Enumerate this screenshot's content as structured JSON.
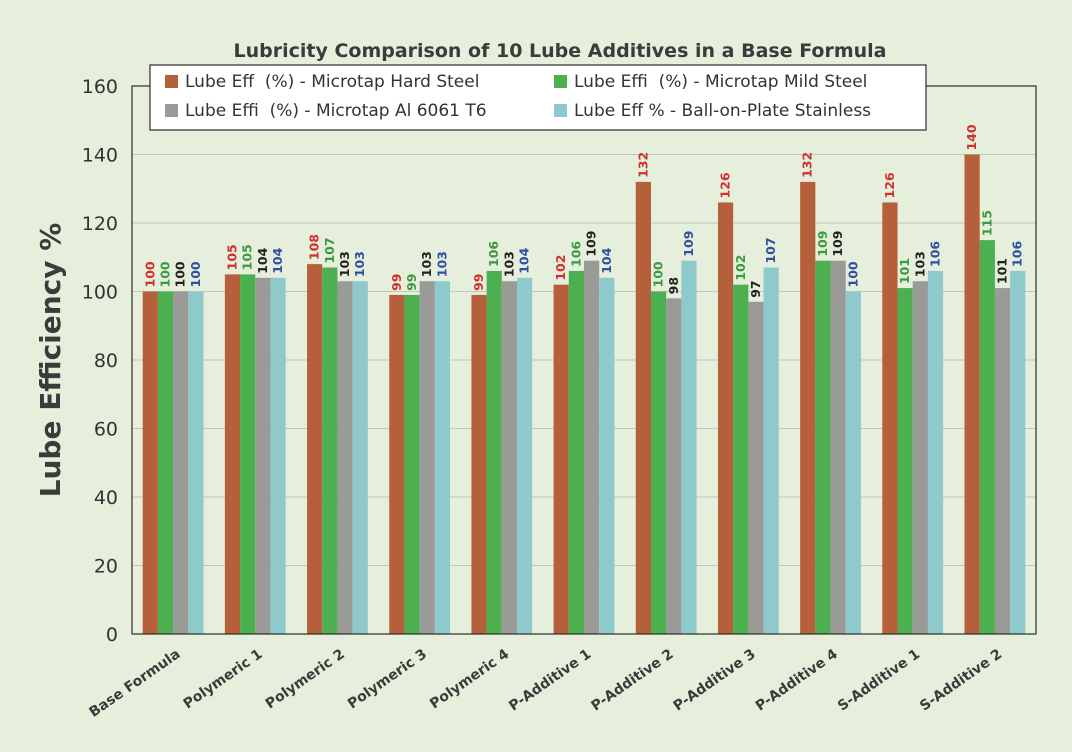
{
  "chart_data": {
    "type": "bar",
    "title": "Lubricity Comparison of 10 Lube Additives in a Base Formula",
    "xlabel": "",
    "ylabel": "Lube Efficiency %",
    "ylim": [
      0,
      160
    ],
    "yticks": [
      0,
      20,
      40,
      60,
      80,
      100,
      120,
      140,
      160
    ],
    "grid": true,
    "legend_position": "top",
    "categories": [
      "Base Formula",
      "Polymeric 1",
      "Polymeric 2",
      "Polymeric 3",
      "Polymeric 4",
      "P-Additive 1",
      "P-Additive 2",
      "P-Additive 3",
      "P-Additive 4",
      "S-Additive 1",
      "S-Additive 2"
    ],
    "series": [
      {
        "name": "Lube Eff  (%) - Microtap Hard Steel",
        "color": "#b5603a",
        "label_color": "#d0312d",
        "values": [
          100,
          105,
          108,
          99,
          99,
          102,
          132,
          126,
          132,
          126,
          140
        ],
        "labels": [
          "100",
          "105",
          "108",
          "99",
          "99",
          "102",
          "132",
          "126",
          "132",
          "126",
          "140"
        ]
      },
      {
        "name": "Lube Effi  (%) - Microtap Mild Steel",
        "color": "#4caf50",
        "label_color": "#3a9a3f",
        "values": [
          100,
          105,
          107,
          99,
          106,
          106,
          100,
          102,
          109,
          101,
          115
        ],
        "labels": [
          "100",
          "105",
          "107",
          "99",
          "106",
          "106",
          "100",
          "102",
          "109",
          "101",
          "115"
        ]
      },
      {
        "name": "Lube Effi  (%) - Microtap Al 6061 T6",
        "color": "#9a9a97",
        "label_color": "#222222",
        "values": [
          100,
          104,
          103,
          103,
          103,
          109,
          98,
          97,
          109,
          103,
          101
        ],
        "labels": [
          "100",
          "104",
          "103",
          "103",
          "103",
          "109",
          "98",
          "97",
          "109",
          "103",
          "101"
        ]
      },
      {
        "name": "Lube Eff % - Ball-on-Plate Stainless",
        "color": "#8ecacb",
        "label_color": "#2e4fa3",
        "values": [
          100,
          104,
          103,
          103,
          104,
          104,
          109,
          107,
          100,
          106,
          106
        ],
        "labels": [
          "100",
          "104",
          "103",
          "103",
          "104",
          "104",
          "109",
          "107",
          "100",
          "106",
          "106"
        ]
      }
    ]
  }
}
